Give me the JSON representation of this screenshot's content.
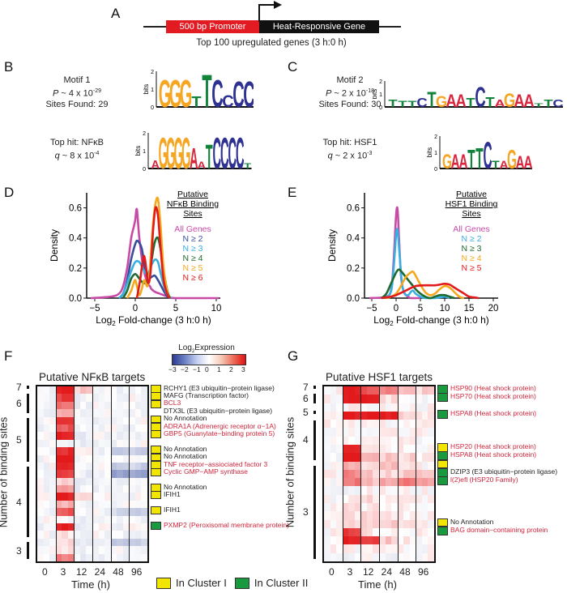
{
  "panels": {
    "A": {
      "label": "A",
      "promoter_label": "500 bp Promoter",
      "gene_label": "Heat-Responsive Gene",
      "caption": "Top 100 upregulated genes (3 h:0 h)"
    },
    "B": {
      "label": "B",
      "motif_title": "Motif 1",
      "p_prefix": "P",
      "p_value": "~ 4 x 10",
      "p_exp": "-29",
      "sites": "Sites Found: 29",
      "top_hit": "Top hit: NFκB",
      "q_prefix": "q",
      "q_value": "~ 8 x 10",
      "q_exp": "-4",
      "axis_label": "bits",
      "motif_letters": [
        "G",
        "G",
        "G",
        "T",
        "T",
        "C",
        "C",
        "C",
        "C"
      ],
      "hit_letters": [
        "A",
        "G",
        "G",
        "G",
        "G",
        "A",
        "A",
        "T",
        "C",
        "C",
        "C",
        "C",
        "T"
      ]
    },
    "C": {
      "label": "C",
      "motif_title": "Motif 2",
      "p_prefix": "P",
      "p_value": "~ 2 x 10",
      "p_exp": "-18",
      "sites": "Sites Found: 30",
      "top_hit": "Top hit: HSF1",
      "q_prefix": "q",
      "q_value": "~ 2 x 10",
      "q_exp": "-3",
      "axis_label": "bits",
      "motif_letters": [
        "T",
        "T",
        "T",
        "C",
        "T",
        "G",
        "A",
        "A",
        "T",
        "C",
        "T",
        "A",
        "G",
        "A",
        "A",
        "T",
        "T",
        "C"
      ],
      "hit_letters": [
        "G",
        "A",
        "A",
        "T",
        "T",
        "C",
        "T",
        "A",
        "G",
        "A",
        "A"
      ]
    },
    "F": {
      "label": "F",
      "title": "Putative NFκB targets",
      "colorbar_title": "Log",
      "colorbar_sub": "2",
      "colorbar_title2": "Expression",
      "colorbar_ticks": [
        "-3",
        "-2",
        "-1",
        "0",
        "1",
        "2",
        "3"
      ],
      "ylabel": "Number of binding sites",
      "xlabel": "Time (h)",
      "xticks": [
        "0",
        "3",
        "12",
        "24",
        "48",
        "96"
      ],
      "ygroups": [
        "7",
        "6",
        "5",
        "4",
        "3"
      ],
      "genes": [
        {
          "name": "RCHY1 (E3 ubiquitin−protein ligase)",
          "color": "black",
          "cluster": "I"
        },
        {
          "name": "MAFG   (Transcription factor)",
          "color": "black",
          "cluster": "I"
        },
        {
          "name": "BCL3",
          "color": "red",
          "cluster": "I"
        },
        {
          "name": "DTX3L  (E3 ubiquitin−protein ligase)",
          "color": "black",
          "cluster": ""
        },
        {
          "name": "No Annotation",
          "color": "black",
          "cluster": "I"
        },
        {
          "name": "ADRA1A (Adrenergic receptor α−1A)",
          "color": "red",
          "cluster": "I"
        },
        {
          "name": "GBP5  (Guanylate−binding protein 5)",
          "color": "red",
          "cluster": "I"
        },
        {
          "name": "No Annotation",
          "color": "black",
          "cluster": "I"
        },
        {
          "name": "No Annotation",
          "color": "black",
          "cluster": "I"
        },
        {
          "name": "TNF receptor−assiociated factor 3",
          "color": "red",
          "cluster": "I"
        },
        {
          "name": "Cyclic GMP−AMP synthase",
          "color": "red",
          "cluster": "I"
        },
        {
          "name": "No Annotation",
          "color": "black",
          "cluster": "I"
        },
        {
          "name": "IFIH1",
          "color": "black",
          "cluster": "I"
        },
        {
          "name": "IFIH1",
          "color": "black",
          "cluster": "I"
        },
        {
          "name": "PXMP2 (Peroxisomal membrane protein)",
          "color": "red",
          "cluster": "II"
        }
      ]
    },
    "G": {
      "label": "G",
      "title": "Putative HSF1 targets",
      "ylabel": "Number of binding sites",
      "xlabel": "Time (h)",
      "xticks": [
        "0",
        "3",
        "12",
        "24",
        "48",
        "96"
      ],
      "ygroups": [
        "7",
        "6",
        "5",
        "4",
        "3"
      ],
      "genes": [
        {
          "name": "HSP90 (Heat shock protein)",
          "color": "red",
          "cluster": "II"
        },
        {
          "name": "HSP70 (Heat shock protein)",
          "color": "red",
          "cluster": "II"
        },
        {
          "name": "HSPA8 (Heat shock protein)",
          "color": "red",
          "cluster": "II"
        },
        {
          "name": "HSP20 (Heat shock protein)",
          "color": "red",
          "cluster": "I"
        },
        {
          "name": "HSPA8 (Heat shock protein)",
          "color": "red",
          "cluster": "II"
        },
        {
          "name": "",
          "color": "black",
          "cluster": "I"
        },
        {
          "name": "DZIP3 (E3 ubiquitin−protein ligase)",
          "color": "black",
          "cluster": "II"
        },
        {
          "name": "l(2)efl  (HSP20 Family)",
          "color": "red",
          "cluster": "II"
        },
        {
          "name": "No Annotation",
          "color": "black",
          "cluster": "I"
        },
        {
          "name": "BAG domain−containing protein",
          "color": "red",
          "cluster": "II"
        }
      ]
    }
  },
  "legend": {
    "cluster_I": "In Cluster I",
    "cluster_II": "In Cluster II",
    "cluster_I_color": "#f2e600",
    "cluster_II_color": "#1a9a3f"
  },
  "colors": {
    "all_genes": "#c84aa7",
    "n2_blue": "#3a4d9b",
    "n3_cyan": "#39aee0",
    "n4_green": "#1f6a2f",
    "n5_orange": "#f4a81d",
    "n6_red": "#e11b1b",
    "heat_red": "#e31a1c",
    "heat_blue": "#3a4fa0"
  },
  "chart_data": [
    {
      "type": "line",
      "panel": "D",
      "title": "",
      "legend_title": "Putative NFκB Binding Sites",
      "legend_position": "top-right",
      "xlabel": "Log2 Fold-change (3 h:0 h)",
      "ylabel": "Density",
      "xlim": [
        -6,
        10.5
      ],
      "ylim": [
        0,
        0.7
      ],
      "xticks": [
        -5,
        0,
        5,
        10
      ],
      "yticks": [
        0.0,
        0.2,
        0.4,
        0.6
      ],
      "xtick_labels": [
        "−5",
        "0",
        "5",
        "10"
      ],
      "ytick_labels": [
        "0.0",
        "0.2",
        "0.4",
        "0.6"
      ],
      "series": [
        {
          "name": "All Genes",
          "color": "#c84aa7",
          "x": [
            -5.5,
            -3,
            -2,
            -1.5,
            -1,
            -0.5,
            -0.2,
            0,
            0.2,
            0.5,
            1,
            1.5,
            1.8,
            2,
            2.5,
            3,
            4,
            5,
            10.3
          ],
          "y": [
            0,
            0.01,
            0.03,
            0.08,
            0.2,
            0.4,
            0.47,
            0.52,
            0.59,
            0.4,
            0.2,
            0.1,
            0.08,
            0.06,
            0.04,
            0.03,
            0.01,
            0,
            0
          ]
        },
        {
          "name": "N ≥ 2",
          "color": "#3a4d9b",
          "x": [
            -2,
            -1.5,
            -1,
            -0.5,
            0,
            0.3,
            0.8,
            1.2,
            1.6,
            2,
            2.4,
            2.8,
            3.2,
            3.6,
            4,
            4.5
          ],
          "y": [
            0,
            0.03,
            0.12,
            0.26,
            0.36,
            0.38,
            0.33,
            0.2,
            0.13,
            0.14,
            0.15,
            0.12,
            0.08,
            0.04,
            0.01,
            0
          ]
        },
        {
          "name": "N ≥ 3",
          "color": "#39aee0",
          "x": [
            -2,
            -1.5,
            -1,
            -0.5,
            0,
            0.5,
            1,
            1.5,
            2,
            2.4,
            2.8,
            3.2,
            3.6,
            4,
            4.5
          ],
          "y": [
            0,
            0.03,
            0.1,
            0.18,
            0.24,
            0.24,
            0.19,
            0.16,
            0.22,
            0.255,
            0.24,
            0.15,
            0.07,
            0.02,
            0
          ]
        },
        {
          "name": "N ≥ 4",
          "color": "#1f6a2f",
          "x": [
            -1.5,
            -1,
            -0.5,
            0,
            0.5,
            1,
            1.5,
            2,
            2.4,
            2.8,
            3.2,
            3.6,
            4,
            4.3
          ],
          "y": [
            0,
            0.05,
            0.13,
            0.16,
            0.13,
            0.1,
            0.12,
            0.25,
            0.37,
            0.4,
            0.3,
            0.15,
            0.04,
            0
          ],
          "note": "approx"
        },
        {
          "name": "N ≥ 5",
          "color": "#f4a81d",
          "x": [
            -1,
            -0.5,
            -0.2,
            0,
            0.2,
            0.5,
            0.8,
            1.1,
            1.5,
            1.8,
            2.2,
            2.5,
            2.8,
            3.1,
            3.5,
            4,
            4.3
          ],
          "y": [
            0,
            0.05,
            0.1,
            0.12,
            0.08,
            0.02,
            0.06,
            0.12,
            0.08,
            0.2,
            0.5,
            0.63,
            0.66,
            0.5,
            0.2,
            0.03,
            0
          ]
        },
        {
          "name": "N ≥ 6",
          "color": "#e11b1b",
          "x": [
            0.2,
            0.6,
            0.9,
            1.1,
            1.3,
            1.6,
            1.9,
            2.2,
            2.5,
            2.8,
            3.1,
            3.5,
            4,
            4.3
          ],
          "y": [
            0,
            0.12,
            0.24,
            0.28,
            0.22,
            0.1,
            0.18,
            0.45,
            0.6,
            0.55,
            0.35,
            0.12,
            0.02,
            0
          ]
        }
      ]
    },
    {
      "type": "line",
      "panel": "E",
      "title": "",
      "legend_title": "Putative HSF1 Binding Sites",
      "legend_position": "top-right",
      "xlabel": "Log2 Fold-change (3 h:0 h)",
      "ylabel": "Density",
      "xlim": [
        -6.5,
        21
      ],
      "ylim": [
        0,
        0.7
      ],
      "xticks": [
        -5,
        0,
        5,
        10,
        15,
        20
      ],
      "yticks": [
        0.0,
        0.2,
        0.4,
        0.6
      ],
      "xtick_labels": [
        "−5",
        "0",
        "5",
        "10",
        "15",
        "20"
      ],
      "ytick_labels": [
        "0.0",
        "0.2",
        "0.4",
        "0.6"
      ],
      "series": [
        {
          "name": "All Genes",
          "color": "#c84aa7",
          "x": [
            -5.5,
            -2,
            -1,
            -0.5,
            0,
            0.3,
            0.6,
            1,
            1.5,
            2,
            2.5,
            3,
            5
          ],
          "y": [
            0,
            0.01,
            0.06,
            0.25,
            0.55,
            0.59,
            0.4,
            0.15,
            0.05,
            0.02,
            0.01,
            0,
            0
          ]
        },
        {
          "name": "N ≥ 2",
          "color": "#39aee0",
          "x": [
            -2,
            -1,
            -0.5,
            0,
            0.3,
            0.7,
            1.2,
            1.8,
            2.5,
            3,
            3.5,
            4,
            5,
            6,
            8,
            10,
            11
          ],
          "y": [
            0,
            0.05,
            0.2,
            0.42,
            0.45,
            0.3,
            0.1,
            0.03,
            0.02,
            0.04,
            0.05,
            0.03,
            0.01,
            0,
            0,
            0.01,
            0
          ]
        },
        {
          "name": "N ≥ 3",
          "color": "#1f6a2f",
          "x": [
            -3,
            -2,
            -1,
            0,
            0.5,
            1,
            2,
            3,
            4,
            5,
            6,
            7,
            8,
            9,
            10,
            11,
            12
          ],
          "y": [
            0,
            0.03,
            0.1,
            0.17,
            0.19,
            0.18,
            0.14,
            0.1,
            0.06,
            0.03,
            0.01,
            0,
            0.01,
            0.02,
            0.02,
            0.01,
            0
          ]
        },
        {
          "name": "N ≥ 4",
          "color": "#f4a81d",
          "x": [
            -2,
            -1,
            0,
            1,
            2,
            3,
            3.5,
            4,
            5,
            6,
            7,
            8,
            9,
            10,
            11,
            12,
            13,
            14
          ],
          "y": [
            0,
            0.01,
            0.03,
            0.08,
            0.14,
            0.17,
            0.175,
            0.15,
            0.09,
            0.04,
            0.02,
            0.03,
            0.06,
            0.08,
            0.07,
            0.04,
            0.01,
            0
          ]
        },
        {
          "name": "N ≥ 5",
          "color": "#e11b1b",
          "x": [
            -3,
            -1,
            0,
            2,
            4,
            6,
            8,
            9,
            10,
            11,
            12,
            13,
            14,
            15,
            16,
            17
          ],
          "y": [
            0,
            0.01,
            0.02,
            0.05,
            0.08,
            0.085,
            0.085,
            0.09,
            0.095,
            0.09,
            0.07,
            0.05,
            0.03,
            0.01,
            0.005,
            0
          ]
        }
      ]
    }
  ]
}
